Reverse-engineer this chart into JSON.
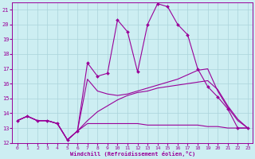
{
  "xlabel": "Windchill (Refroidissement éolien,°C)",
  "bg_color": "#cdeef2",
  "line_color": "#990099",
  "grid_color": "#aad4da",
  "xlim": [
    -0.5,
    23.5
  ],
  "ylim": [
    12,
    21.5
  ],
  "yticks": [
    12,
    13,
    14,
    15,
    16,
    17,
    18,
    19,
    20,
    21
  ],
  "xticks": [
    0,
    1,
    2,
    3,
    4,
    5,
    6,
    7,
    8,
    9,
    10,
    11,
    12,
    13,
    14,
    15,
    16,
    17,
    18,
    19,
    20,
    21,
    22,
    23
  ],
  "line1_x": [
    0,
    1,
    2,
    3,
    4,
    5,
    6,
    7,
    8,
    9,
    10,
    11,
    12,
    13,
    14,
    15,
    16,
    17,
    18,
    19,
    20,
    21,
    22,
    23
  ],
  "line1_y": [
    13.5,
    13.8,
    13.5,
    13.5,
    13.3,
    12.2,
    12.8,
    17.4,
    16.5,
    16.7,
    20.3,
    19.5,
    16.8,
    20.0,
    21.4,
    21.2,
    20.0,
    19.3,
    17.0,
    15.8,
    15.1,
    14.3,
    13.0,
    13.0
  ],
  "line2_x": [
    0,
    1,
    2,
    3,
    4,
    5,
    6,
    7,
    8,
    9,
    10,
    11,
    12,
    13,
    14,
    15,
    16,
    17,
    18,
    19,
    20,
    21,
    22,
    23
  ],
  "line2_y": [
    13.5,
    13.8,
    13.5,
    13.5,
    13.3,
    12.2,
    12.8,
    16.3,
    15.5,
    15.3,
    15.2,
    15.3,
    15.5,
    15.7,
    15.9,
    16.1,
    16.3,
    16.6,
    16.9,
    17.0,
    15.5,
    14.4,
    13.5,
    13.0
  ],
  "line3_x": [
    0,
    1,
    2,
    3,
    4,
    5,
    6,
    7,
    8,
    9,
    10,
    11,
    12,
    13,
    14,
    15,
    16,
    17,
    18,
    19,
    20,
    21,
    22,
    23
  ],
  "line3_y": [
    13.5,
    13.8,
    13.5,
    13.5,
    13.3,
    12.2,
    12.8,
    13.3,
    13.3,
    13.3,
    13.3,
    13.3,
    13.3,
    13.2,
    13.2,
    13.2,
    13.2,
    13.2,
    13.2,
    13.1,
    13.1,
    13.0,
    13.0,
    13.0
  ],
  "line4_x": [
    0,
    1,
    2,
    3,
    4,
    5,
    6,
    7,
    8,
    9,
    10,
    11,
    12,
    13,
    14,
    15,
    16,
    17,
    18,
    19,
    20,
    21,
    22,
    23
  ],
  "line4_y": [
    13.5,
    13.8,
    13.5,
    13.5,
    13.3,
    12.2,
    12.8,
    13.5,
    14.1,
    14.5,
    14.9,
    15.2,
    15.4,
    15.5,
    15.7,
    15.8,
    15.9,
    16.0,
    16.1,
    16.2,
    15.6,
    14.5,
    13.6,
    13.0
  ]
}
